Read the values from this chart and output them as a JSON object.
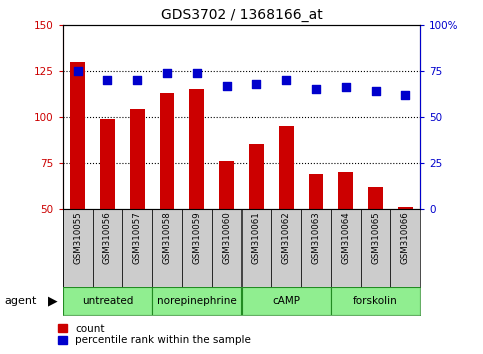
{
  "title": "GDS3702 / 1368166_at",
  "samples": [
    "GSM310055",
    "GSM310056",
    "GSM310057",
    "GSM310058",
    "GSM310059",
    "GSM310060",
    "GSM310061",
    "GSM310062",
    "GSM310063",
    "GSM310064",
    "GSM310065",
    "GSM310066"
  ],
  "counts": [
    130,
    99,
    104,
    113,
    115,
    76,
    85,
    95,
    69,
    70,
    62,
    51
  ],
  "percentiles": [
    75,
    70,
    70,
    74,
    74,
    67,
    68,
    70,
    65,
    66,
    64,
    62
  ],
  "agents": [
    {
      "label": "untreated",
      "start": 0,
      "end": 2
    },
    {
      "label": "norepinephrine",
      "start": 3,
      "end": 5
    },
    {
      "label": "cAMP",
      "start": 6,
      "end": 8
    },
    {
      "label": "forskolin",
      "start": 9,
      "end": 11
    }
  ],
  "bar_color": "#cc0000",
  "dot_color": "#0000cc",
  "ylim_left": [
    50,
    150
  ],
  "ylim_right": [
    0,
    100
  ],
  "yticks_left": [
    50,
    75,
    100,
    125,
    150
  ],
  "yticks_right": [
    0,
    25,
    50,
    75,
    100
  ],
  "ytick_labels_right": [
    "0",
    "25",
    "50",
    "75",
    "100%"
  ],
  "hlines": [
    75,
    100,
    125
  ],
  "sample_bg_color": "#cccccc",
  "agent_bg_color_light": "#90EE90",
  "agent_bg_color_dark": "#4CBB4C"
}
